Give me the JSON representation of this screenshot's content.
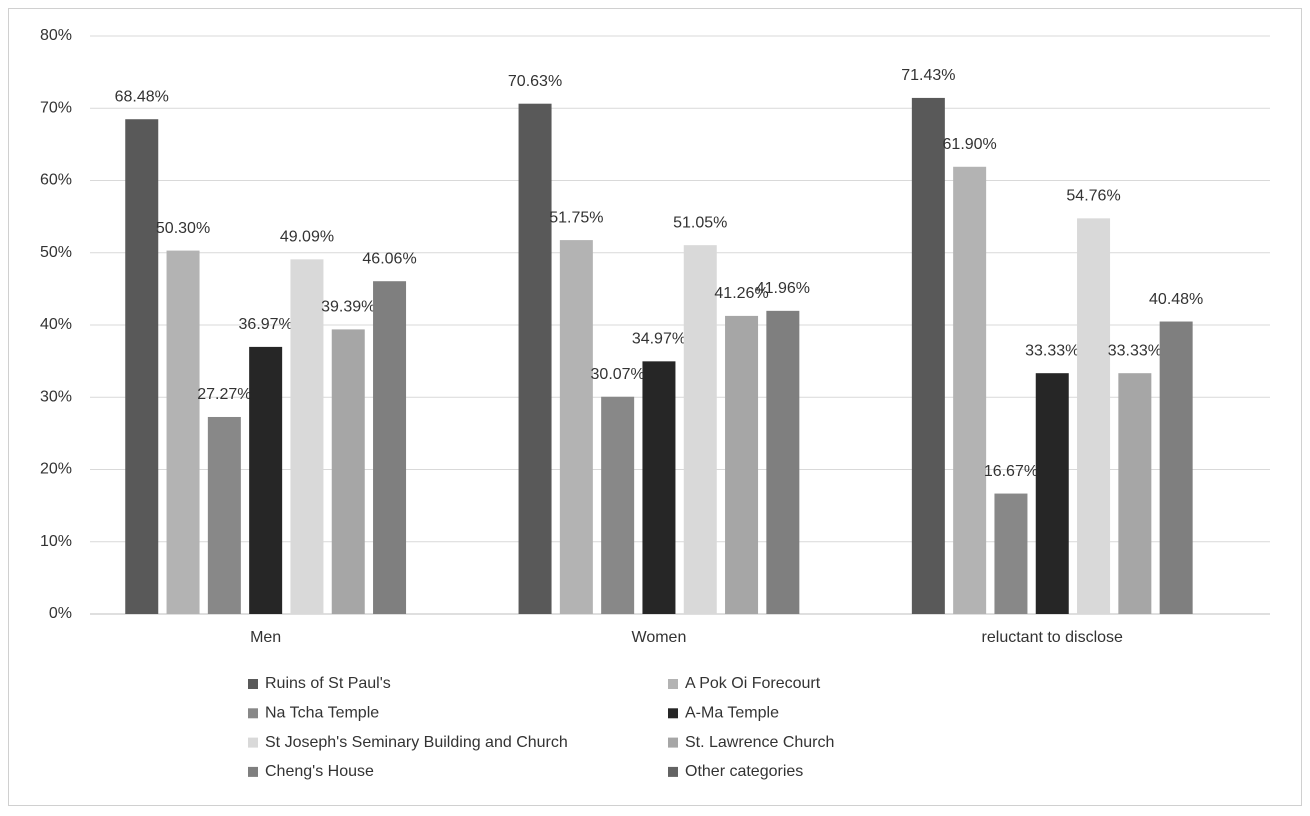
{
  "chart_data": {
    "type": "bar",
    "categories": [
      "Men",
      "Women",
      "reluctant to disclose"
    ],
    "series": [
      {
        "name": "Ruins of St Paul's",
        "color": "#595959",
        "values": [
          68.48,
          70.63,
          71.43
        ],
        "value_labels": [
          "68.48%",
          "70.63%",
          "71.43%"
        ]
      },
      {
        "name": "A Pok Oi Forecourt",
        "color": "#b3b3b3",
        "values": [
          50.3,
          51.75,
          61.9
        ],
        "value_labels": [
          "50.30%",
          "51.75%",
          "61.90%"
        ]
      },
      {
        "name": "Na Tcha Temple",
        "color": "#888888",
        "values": [
          27.27,
          30.07,
          16.67
        ],
        "value_labels": [
          "27.27%",
          "30.07%",
          "16.67%"
        ]
      },
      {
        "name": "A-Ma Temple",
        "color": "#262626",
        "values": [
          36.97,
          34.97,
          33.33
        ],
        "value_labels": [
          "36.97%",
          "34.97%",
          "33.33%"
        ]
      },
      {
        "name": "St Joseph's Seminary Building and Church",
        "color": "#d9d9d9",
        "values": [
          49.09,
          51.05,
          54.76
        ],
        "value_labels": [
          "49.09%",
          "51.05%",
          "54.76%"
        ]
      },
      {
        "name": "St. Lawrence Church",
        "color": "#a6a6a6",
        "values": [
          39.39,
          41.26,
          33.33
        ],
        "value_labels": [
          "39.39%",
          "41.26%",
          "33.33%"
        ]
      },
      {
        "name": "Cheng's House",
        "color": "#7f7f7f",
        "values": [
          46.06,
          41.96,
          40.48
        ],
        "value_labels": [
          "46.06%",
          "41.96%",
          "40.48%"
        ]
      },
      {
        "name": "Other categories",
        "color": "#636363",
        "values": [
          null,
          null,
          null
        ]
      }
    ],
    "ylim": [
      0,
      80
    ],
    "yticks": [
      {
        "value": 0,
        "label": "0%"
      },
      {
        "value": 10,
        "label": "10%"
      },
      {
        "value": 20,
        "label": "20%"
      },
      {
        "value": 30,
        "label": "30%"
      },
      {
        "value": 40,
        "label": "40%"
      },
      {
        "value": 50,
        "label": "50%"
      },
      {
        "value": 60,
        "label": "60%"
      },
      {
        "value": 70,
        "label": "70%"
      },
      {
        "value": 80,
        "label": "80%"
      }
    ],
    "grid": true,
    "legend": "bottom"
  }
}
